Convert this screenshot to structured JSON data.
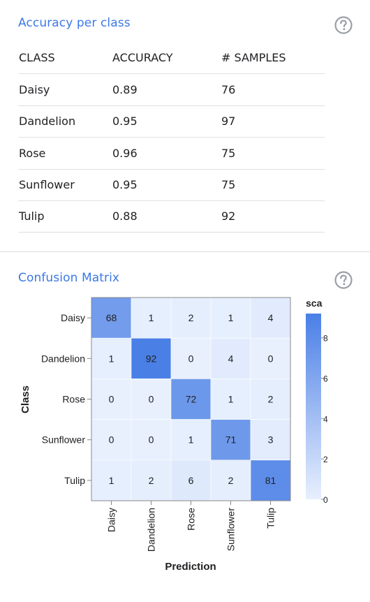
{
  "accuracy_section": {
    "title": "Accuracy per class",
    "columns": [
      "CLASS",
      "ACCURACY",
      "# SAMPLES"
    ],
    "rows": [
      [
        "Daisy",
        "0.89",
        "76"
      ],
      [
        "Dandelion",
        "0.95",
        "97"
      ],
      [
        "Rose",
        "0.96",
        "75"
      ],
      [
        "Sunflower",
        "0.95",
        "75"
      ],
      [
        "Tulip",
        "0.88",
        "92"
      ]
    ],
    "help_icon": "help-circle-icon"
  },
  "confusion_section": {
    "title": "Confusion Matrix",
    "help_icon": "help-circle-icon"
  },
  "chart_data": {
    "type": "heatmap",
    "classes": [
      "Daisy",
      "Dandelion",
      "Rose",
      "Sunflower",
      "Tulip"
    ],
    "matrix": [
      [
        68,
        1,
        2,
        1,
        4
      ],
      [
        1,
        92,
        0,
        4,
        0
      ],
      [
        0,
        0,
        72,
        1,
        2
      ],
      [
        0,
        0,
        1,
        71,
        3
      ],
      [
        1,
        2,
        6,
        2,
        81
      ]
    ],
    "xlabel": "Prediction",
    "ylabel": "Class",
    "legend_title": "sca",
    "legend_ticks": [
      "8",
      "6",
      "4",
      "2",
      "0"
    ],
    "color_low": "#e8f0fe",
    "color_high": "#4a7fe6",
    "value_max": 92
  }
}
